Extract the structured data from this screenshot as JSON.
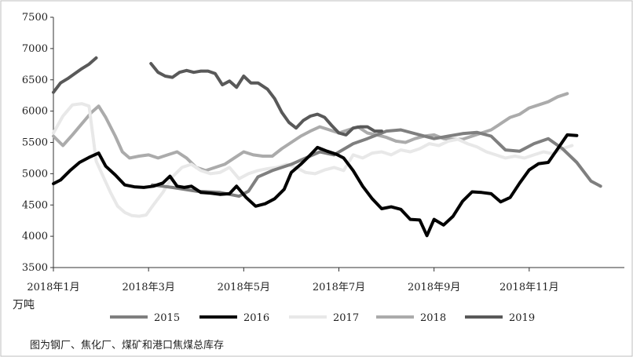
{
  "caption": "图为钢厂、焦化厂、煤矿和港口焦煤总库存",
  "chart_data": {
    "type": "line",
    "unit_label": "万吨",
    "ylim": [
      3500,
      7500
    ],
    "yticks": [
      3500,
      4000,
      4500,
      5000,
      5500,
      6000,
      6500,
      7000,
      7500
    ],
    "xlim": [
      0,
      12
    ],
    "xticks": [
      {
        "x": 0,
        "label": "2018年1月"
      },
      {
        "x": 2,
        "label": "2018年3月"
      },
      {
        "x": 4,
        "label": "2018年5月"
      },
      {
        "x": 6,
        "label": "2018年7月"
      },
      {
        "x": 8,
        "label": "2018年9月"
      },
      {
        "x": 10,
        "label": "2018年11月"
      }
    ],
    "grid": false,
    "legend_position": "bottom",
    "series": [
      {
        "name": "2015",
        "color": "#7f7f7f",
        "points": [
          [
            2.08,
            4820
          ],
          [
            2.5,
            4780
          ],
          [
            3.0,
            4720
          ],
          [
            3.5,
            4700
          ],
          [
            3.9,
            4640
          ],
          [
            4.1,
            4720
          ],
          [
            4.3,
            4950
          ],
          [
            4.6,
            5050
          ],
          [
            5.0,
            5150
          ],
          [
            5.3,
            5250
          ],
          [
            5.6,
            5350
          ],
          [
            5.9,
            5300
          ],
          [
            6.3,
            5480
          ],
          [
            6.6,
            5560
          ],
          [
            7.0,
            5680
          ],
          [
            7.3,
            5700
          ],
          [
            7.7,
            5620
          ],
          [
            8.0,
            5560
          ],
          [
            8.3,
            5600
          ],
          [
            8.6,
            5640
          ],
          [
            8.9,
            5660
          ],
          [
            9.2,
            5600
          ],
          [
            9.5,
            5380
          ],
          [
            9.8,
            5360
          ],
          [
            10.1,
            5480
          ],
          [
            10.4,
            5560
          ],
          [
            10.7,
            5400
          ],
          [
            11.0,
            5180
          ],
          [
            11.3,
            4880
          ],
          [
            11.5,
            4800
          ]
        ]
      },
      {
        "name": "2016",
        "color": "#000000",
        "points": [
          [
            0.0,
            4840
          ],
          [
            0.15,
            4900
          ],
          [
            0.35,
            5050
          ],
          [
            0.55,
            5180
          ],
          [
            0.75,
            5260
          ],
          [
            0.95,
            5330
          ],
          [
            1.1,
            5120
          ],
          [
            1.3,
            4980
          ],
          [
            1.5,
            4820
          ],
          [
            1.7,
            4790
          ],
          [
            1.9,
            4780
          ],
          [
            2.1,
            4800
          ],
          [
            2.3,
            4850
          ],
          [
            2.45,
            4960
          ],
          [
            2.6,
            4800
          ],
          [
            2.75,
            4780
          ],
          [
            2.9,
            4800
          ],
          [
            3.1,
            4700
          ],
          [
            3.3,
            4690
          ],
          [
            3.5,
            4670
          ],
          [
            3.7,
            4680
          ],
          [
            3.85,
            4800
          ],
          [
            4.05,
            4620
          ],
          [
            4.25,
            4480
          ],
          [
            4.45,
            4520
          ],
          [
            4.65,
            4600
          ],
          [
            4.85,
            4750
          ],
          [
            5.0,
            5020
          ],
          [
            5.2,
            5150
          ],
          [
            5.4,
            5300
          ],
          [
            5.55,
            5420
          ],
          [
            5.75,
            5360
          ],
          [
            5.95,
            5310
          ],
          [
            6.1,
            5250
          ],
          [
            6.3,
            5050
          ],
          [
            6.5,
            4800
          ],
          [
            6.7,
            4600
          ],
          [
            6.9,
            4440
          ],
          [
            7.1,
            4470
          ],
          [
            7.3,
            4430
          ],
          [
            7.5,
            4270
          ],
          [
            7.7,
            4260
          ],
          [
            7.85,
            4010
          ],
          [
            8.0,
            4270
          ],
          [
            8.2,
            4180
          ],
          [
            8.4,
            4320
          ],
          [
            8.6,
            4560
          ],
          [
            8.8,
            4710
          ],
          [
            9.0,
            4700
          ],
          [
            9.2,
            4680
          ],
          [
            9.4,
            4550
          ],
          [
            9.6,
            4620
          ],
          [
            9.8,
            4850
          ],
          [
            10.0,
            5060
          ],
          [
            10.2,
            5160
          ],
          [
            10.4,
            5180
          ],
          [
            10.6,
            5400
          ],
          [
            10.8,
            5620
          ],
          [
            11.0,
            5610
          ]
        ]
      },
      {
        "name": "2017",
        "color": "#e8e8e8",
        "points": [
          [
            0.0,
            5650
          ],
          [
            0.2,
            5920
          ],
          [
            0.4,
            6100
          ],
          [
            0.6,
            6120
          ],
          [
            0.75,
            6080
          ],
          [
            0.9,
            5200
          ],
          [
            1.05,
            4950
          ],
          [
            1.2,
            4700
          ],
          [
            1.35,
            4480
          ],
          [
            1.5,
            4380
          ],
          [
            1.65,
            4330
          ],
          [
            1.8,
            4320
          ],
          [
            1.95,
            4340
          ],
          [
            2.1,
            4500
          ],
          [
            2.3,
            4700
          ],
          [
            2.5,
            4950
          ],
          [
            2.7,
            5100
          ],
          [
            2.9,
            5150
          ],
          [
            3.1,
            5050
          ],
          [
            3.3,
            5000
          ],
          [
            3.5,
            5020
          ],
          [
            3.7,
            5100
          ],
          [
            3.9,
            4920
          ],
          [
            4.1,
            5000
          ],
          [
            4.3,
            5050
          ],
          [
            4.5,
            5080
          ],
          [
            4.7,
            5100
          ],
          [
            4.9,
            5150
          ],
          [
            5.1,
            5100
          ],
          [
            5.3,
            5020
          ],
          [
            5.5,
            5000
          ],
          [
            5.7,
            5060
          ],
          [
            5.9,
            5100
          ],
          [
            6.1,
            5050
          ],
          [
            6.3,
            5300
          ],
          [
            6.5,
            5250
          ],
          [
            6.7,
            5330
          ],
          [
            6.9,
            5350
          ],
          [
            7.1,
            5300
          ],
          [
            7.3,
            5380
          ],
          [
            7.5,
            5350
          ],
          [
            7.7,
            5400
          ],
          [
            7.9,
            5480
          ],
          [
            8.1,
            5450
          ],
          [
            8.3,
            5520
          ],
          [
            8.5,
            5550
          ],
          [
            8.7,
            5480
          ],
          [
            8.9,
            5430
          ],
          [
            9.1,
            5350
          ],
          [
            9.3,
            5300
          ],
          [
            9.5,
            5250
          ],
          [
            9.7,
            5280
          ],
          [
            9.9,
            5250
          ],
          [
            10.1,
            5300
          ],
          [
            10.3,
            5350
          ],
          [
            10.5,
            5320
          ],
          [
            10.7,
            5400
          ],
          [
            10.9,
            5450
          ]
        ]
      },
      {
        "name": "2018",
        "color": "#ababab",
        "points": [
          [
            0.0,
            5600
          ],
          [
            0.2,
            5450
          ],
          [
            0.4,
            5620
          ],
          [
            0.6,
            5800
          ],
          [
            0.8,
            5980
          ],
          [
            0.95,
            6080
          ],
          [
            1.1,
            5900
          ],
          [
            1.3,
            5600
          ],
          [
            1.45,
            5350
          ],
          [
            1.6,
            5250
          ],
          [
            1.8,
            5280
          ],
          [
            2.0,
            5300
          ],
          [
            2.2,
            5250
          ],
          [
            2.4,
            5300
          ],
          [
            2.6,
            5350
          ],
          [
            2.8,
            5250
          ],
          [
            3.0,
            5100
          ],
          [
            3.2,
            5050
          ],
          [
            3.4,
            5100
          ],
          [
            3.6,
            5150
          ],
          [
            3.8,
            5250
          ],
          [
            4.0,
            5350
          ],
          [
            4.2,
            5300
          ],
          [
            4.4,
            5280
          ],
          [
            4.6,
            5280
          ],
          [
            4.8,
            5400
          ],
          [
            5.0,
            5500
          ],
          [
            5.2,
            5600
          ],
          [
            5.4,
            5680
          ],
          [
            5.6,
            5750
          ],
          [
            5.8,
            5700
          ],
          [
            6.0,
            5650
          ],
          [
            6.2,
            5700
          ],
          [
            6.4,
            5750
          ],
          [
            6.6,
            5650
          ],
          [
            6.8,
            5620
          ],
          [
            7.0,
            5580
          ],
          [
            7.2,
            5520
          ],
          [
            7.4,
            5500
          ],
          [
            7.6,
            5560
          ],
          [
            7.8,
            5600
          ],
          [
            8.0,
            5620
          ],
          [
            8.2,
            5560
          ],
          [
            8.4,
            5550
          ],
          [
            8.6,
            5550
          ],
          [
            8.8,
            5600
          ],
          [
            9.0,
            5650
          ],
          [
            9.2,
            5700
          ],
          [
            9.4,
            5800
          ],
          [
            9.6,
            5900
          ],
          [
            9.8,
            5950
          ],
          [
            10.0,
            6050
          ],
          [
            10.2,
            6100
          ],
          [
            10.4,
            6150
          ],
          [
            10.6,
            6230
          ],
          [
            10.8,
            6280
          ]
        ]
      },
      {
        "name": "2019",
        "color": "#595959",
        "points": [
          [
            0.0,
            6300
          ],
          [
            0.15,
            6450
          ],
          [
            0.3,
            6520
          ],
          [
            0.45,
            6600
          ],
          [
            0.6,
            6680
          ],
          [
            0.75,
            6750
          ],
          [
            0.9,
            6850
          ]
        ]
      }
    ],
    "series_2019_second_segment": [
      [
        2.05,
        6760
      ],
      [
        2.2,
        6620
      ],
      [
        2.35,
        6560
      ],
      [
        2.5,
        6540
      ],
      [
        2.65,
        6620
      ],
      [
        2.8,
        6650
      ],
      [
        2.95,
        6620
      ],
      [
        3.1,
        6640
      ],
      [
        3.25,
        6640
      ],
      [
        3.4,
        6600
      ],
      [
        3.55,
        6420
      ],
      [
        3.7,
        6480
      ],
      [
        3.85,
        6380
      ],
      [
        4.0,
        6560
      ],
      [
        4.15,
        6450
      ],
      [
        4.3,
        6450
      ],
      [
        4.5,
        6350
      ],
      [
        4.65,
        6200
      ],
      [
        4.8,
        5980
      ],
      [
        4.95,
        5820
      ],
      [
        5.1,
        5730
      ],
      [
        5.25,
        5850
      ],
      [
        5.4,
        5920
      ],
      [
        5.55,
        5950
      ],
      [
        5.7,
        5900
      ],
      [
        5.85,
        5770
      ],
      [
        6.0,
        5650
      ],
      [
        6.15,
        5620
      ],
      [
        6.3,
        5730
      ],
      [
        6.45,
        5750
      ],
      [
        6.6,
        5750
      ],
      [
        6.75,
        5680
      ],
      [
        6.9,
        5680
      ]
    ]
  }
}
